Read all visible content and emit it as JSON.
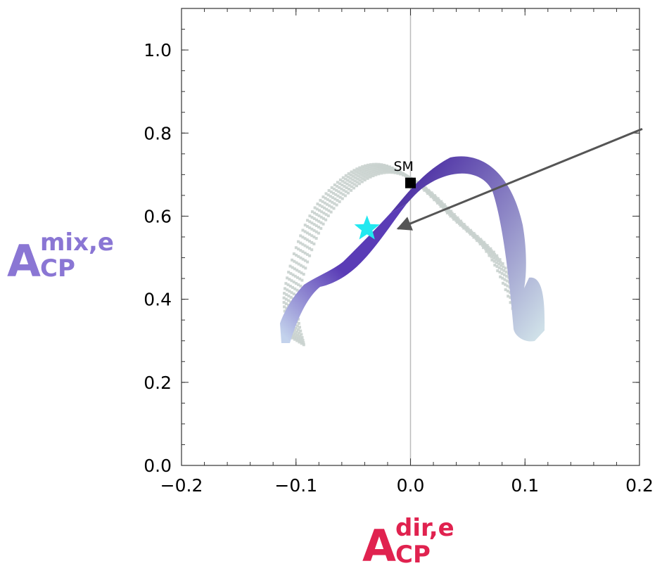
{
  "chart_data": {
    "type": "scatter",
    "xlim": [
      -0.2,
      0.2
    ],
    "ylim": [
      0.0,
      1.1
    ],
    "x_ticks": [
      "−0.2",
      "−0.1",
      "0.0",
      "0.1",
      "0.2"
    ],
    "y_ticks": [
      "0.0",
      "0.2",
      "0.4",
      "0.6",
      "0.8",
      "1.0"
    ],
    "xlabel": {
      "base": "A",
      "sup": "dir,e",
      "sub": "CP",
      "color": "#e0224f"
    },
    "ylabel": {
      "base": "A",
      "sup": "mix,e",
      "sub": "CP",
      "color": "#8a76d4"
    },
    "grid": false,
    "reference_line": {
      "x": 0.0,
      "color": "#bbbbbb"
    },
    "series": [
      {
        "style": "dotted band",
        "color": "#c9d2ce",
        "points": [
          [
            -0.105,
            0.31
          ],
          [
            -0.11,
            0.42
          ],
          [
            -0.09,
            0.59
          ],
          [
            -0.06,
            0.69
          ],
          [
            -0.03,
            0.725
          ],
          [
            0.0,
            0.69
          ],
          [
            0.035,
            0.6
          ],
          [
            0.07,
            0.5
          ],
          [
            0.095,
            0.335
          ]
        ]
      },
      {
        "style": "gradient band",
        "color_start": "#3d1a9c",
        "color_end": "#cfe0e8",
        "points": [
          [
            -0.105,
            0.32
          ],
          [
            -0.07,
            0.42
          ],
          [
            -0.04,
            0.55
          ],
          [
            0.0,
            0.69
          ],
          [
            0.04,
            0.74
          ],
          [
            0.07,
            0.69
          ],
          [
            0.095,
            0.55
          ],
          [
            0.105,
            0.41
          ],
          [
            0.11,
            0.31
          ]
        ]
      }
    ],
    "markers": [
      {
        "name": "SM",
        "x": 0.0,
        "y": 0.68,
        "shape": "square",
        "color": "#000000"
      },
      {
        "x": -0.038,
        "y": 0.57,
        "shape": "star",
        "color": "#22e8f0"
      }
    ],
    "annotation": {
      "type": "arrow",
      "from": [
        0.2,
        0.81
      ],
      "to": [
        -0.011,
        0.57
      ],
      "color": "#555555"
    }
  }
}
